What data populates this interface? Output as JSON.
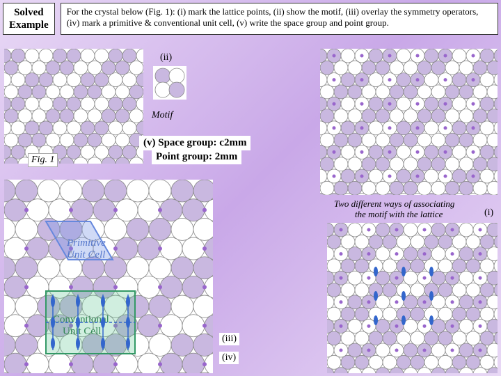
{
  "badge_line1": "Solved",
  "badge_line2": "Example",
  "prompt_text": "For the crystal below (Fig. 1): (i) mark the lattice points, (ii) show the motif, (iii) overlay the symmetry operators, (iv) mark a primitive & conventional unit cell, (v) write the space group and point group.",
  "labels": {
    "ii": "(ii)",
    "motif": "Motif",
    "v_space": "(v) Space group: c2mm",
    "v_point": "Point group: 2mm",
    "fig1": "Fig. 1",
    "i": "(i)",
    "assoc1": "Two different ways of associating",
    "assoc2": "the motif with the lattice",
    "iii": "(iii)",
    "iv": "(iv)",
    "prim": "Primitive",
    "prim2": "Unit Cell",
    "conv": "Conventional",
    "conv2": "Unit Cell"
  },
  "colors": {
    "circle_fill_light": "#c9b8e0",
    "circle_fill_white": "#ffffff",
    "circle_stroke": "#888888",
    "lattice_point": "#9966cc",
    "prim_cell": "#6688dd",
    "conv_cell": "#339966",
    "sym_op": "#3366cc",
    "text_prim": "#5577cc",
    "text_conv": "#338855"
  },
  "geometry": {
    "circle_r": 10,
    "small_dot_r": 2.5,
    "grid_rows": 8,
    "grid_cols": 10,
    "big_rows": 10,
    "big_cols": 12
  }
}
